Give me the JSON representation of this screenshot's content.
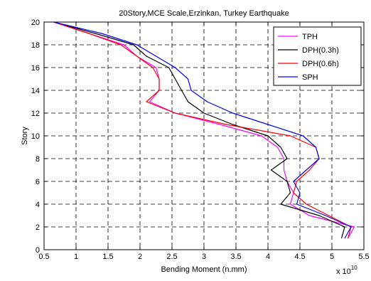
{
  "chart_data": {
    "type": "line",
    "title": "20Story,MCE Scale,Erzinkan, Turkey Earthquake",
    "xlabel": "Bending Moment (n.mm)",
    "ylabel": "Story",
    "x_multiplier": "x 10",
    "x_exponent": "10",
    "xlim": [
      0.5,
      5.5
    ],
    "ylim": [
      0,
      20
    ],
    "xticks": [
      0.5,
      1,
      1.5,
      2,
      2.5,
      3,
      3.5,
      4,
      4.5,
      5,
      5.5
    ],
    "xtick_labels": [
      "0.5",
      "1",
      "1.5",
      "2",
      "2.5",
      "3",
      "3.5",
      "4",
      "4.5",
      "5",
      "5.5"
    ],
    "yticks": [
      0,
      2,
      4,
      6,
      8,
      10,
      12,
      14,
      16,
      18,
      20
    ],
    "ytick_labels": [
      "0",
      "2",
      "4",
      "6",
      "8",
      "10",
      "12",
      "14",
      "16",
      "18",
      "20"
    ],
    "grid": true,
    "legend_position": "top-right",
    "series": [
      {
        "name": "TPH",
        "color": "#ff00ff",
        "points": [
          [
            5.25,
            1
          ],
          [
            5.35,
            2
          ],
          [
            4.65,
            3
          ],
          [
            4.35,
            4
          ],
          [
            4.4,
            5
          ],
          [
            4.3,
            6
          ],
          [
            4.25,
            7
          ],
          [
            4.25,
            8
          ],
          [
            4.15,
            9
          ],
          [
            3.9,
            10
          ],
          [
            3.25,
            11
          ],
          [
            2.55,
            12
          ],
          [
            2.15,
            13
          ],
          [
            2.3,
            14
          ],
          [
            2.3,
            15
          ],
          [
            2.25,
            16
          ],
          [
            1.95,
            17
          ],
          [
            1.75,
            18
          ],
          [
            1.2,
            19
          ],
          [
            0.65,
            20
          ]
        ]
      },
      {
        "name": "DPH(0.3h)",
        "color": "#000000",
        "points": [
          [
            5.15,
            1
          ],
          [
            5.2,
            2
          ],
          [
            4.8,
            3
          ],
          [
            4.2,
            4
          ],
          [
            4.35,
            5
          ],
          [
            4.3,
            6
          ],
          [
            4.05,
            7
          ],
          [
            4.3,
            8
          ],
          [
            4.2,
            9
          ],
          [
            4.0,
            10
          ],
          [
            3.45,
            11
          ],
          [
            3.0,
            12
          ],
          [
            2.75,
            13
          ],
          [
            2.65,
            14
          ],
          [
            2.55,
            15
          ],
          [
            2.45,
            16
          ],
          [
            2.1,
            17
          ],
          [
            1.9,
            18
          ],
          [
            1.3,
            19
          ],
          [
            0.65,
            20
          ]
        ]
      },
      {
        "name": "DPH(0.6h)",
        "color": "#ff0000",
        "points": [
          [
            5.25,
            1
          ],
          [
            5.3,
            2
          ],
          [
            4.95,
            3
          ],
          [
            4.6,
            4
          ],
          [
            4.4,
            5
          ],
          [
            4.45,
            6
          ],
          [
            4.65,
            7
          ],
          [
            4.8,
            8
          ],
          [
            4.75,
            9
          ],
          [
            4.35,
            10
          ],
          [
            3.35,
            11
          ],
          [
            2.55,
            12
          ],
          [
            2.1,
            13
          ],
          [
            2.3,
            14
          ],
          [
            2.3,
            15
          ],
          [
            2.2,
            16
          ],
          [
            1.95,
            17
          ],
          [
            1.7,
            18
          ],
          [
            1.2,
            19
          ],
          [
            0.65,
            20
          ]
        ]
      },
      {
        "name": "SPH",
        "color": "#0000ff",
        "points": [
          [
            5.2,
            1
          ],
          [
            5.3,
            2
          ],
          [
            4.9,
            3
          ],
          [
            4.45,
            4
          ],
          [
            4.5,
            5
          ],
          [
            4.4,
            6
          ],
          [
            4.6,
            7
          ],
          [
            4.8,
            8
          ],
          [
            4.75,
            9
          ],
          [
            4.55,
            10
          ],
          [
            4.0,
            11
          ],
          [
            3.45,
            12
          ],
          [
            3.05,
            13
          ],
          [
            2.8,
            14
          ],
          [
            2.75,
            15
          ],
          [
            2.55,
            16
          ],
          [
            2.25,
            17
          ],
          [
            1.95,
            18
          ],
          [
            1.4,
            19
          ],
          [
            0.65,
            20
          ]
        ]
      }
    ]
  }
}
